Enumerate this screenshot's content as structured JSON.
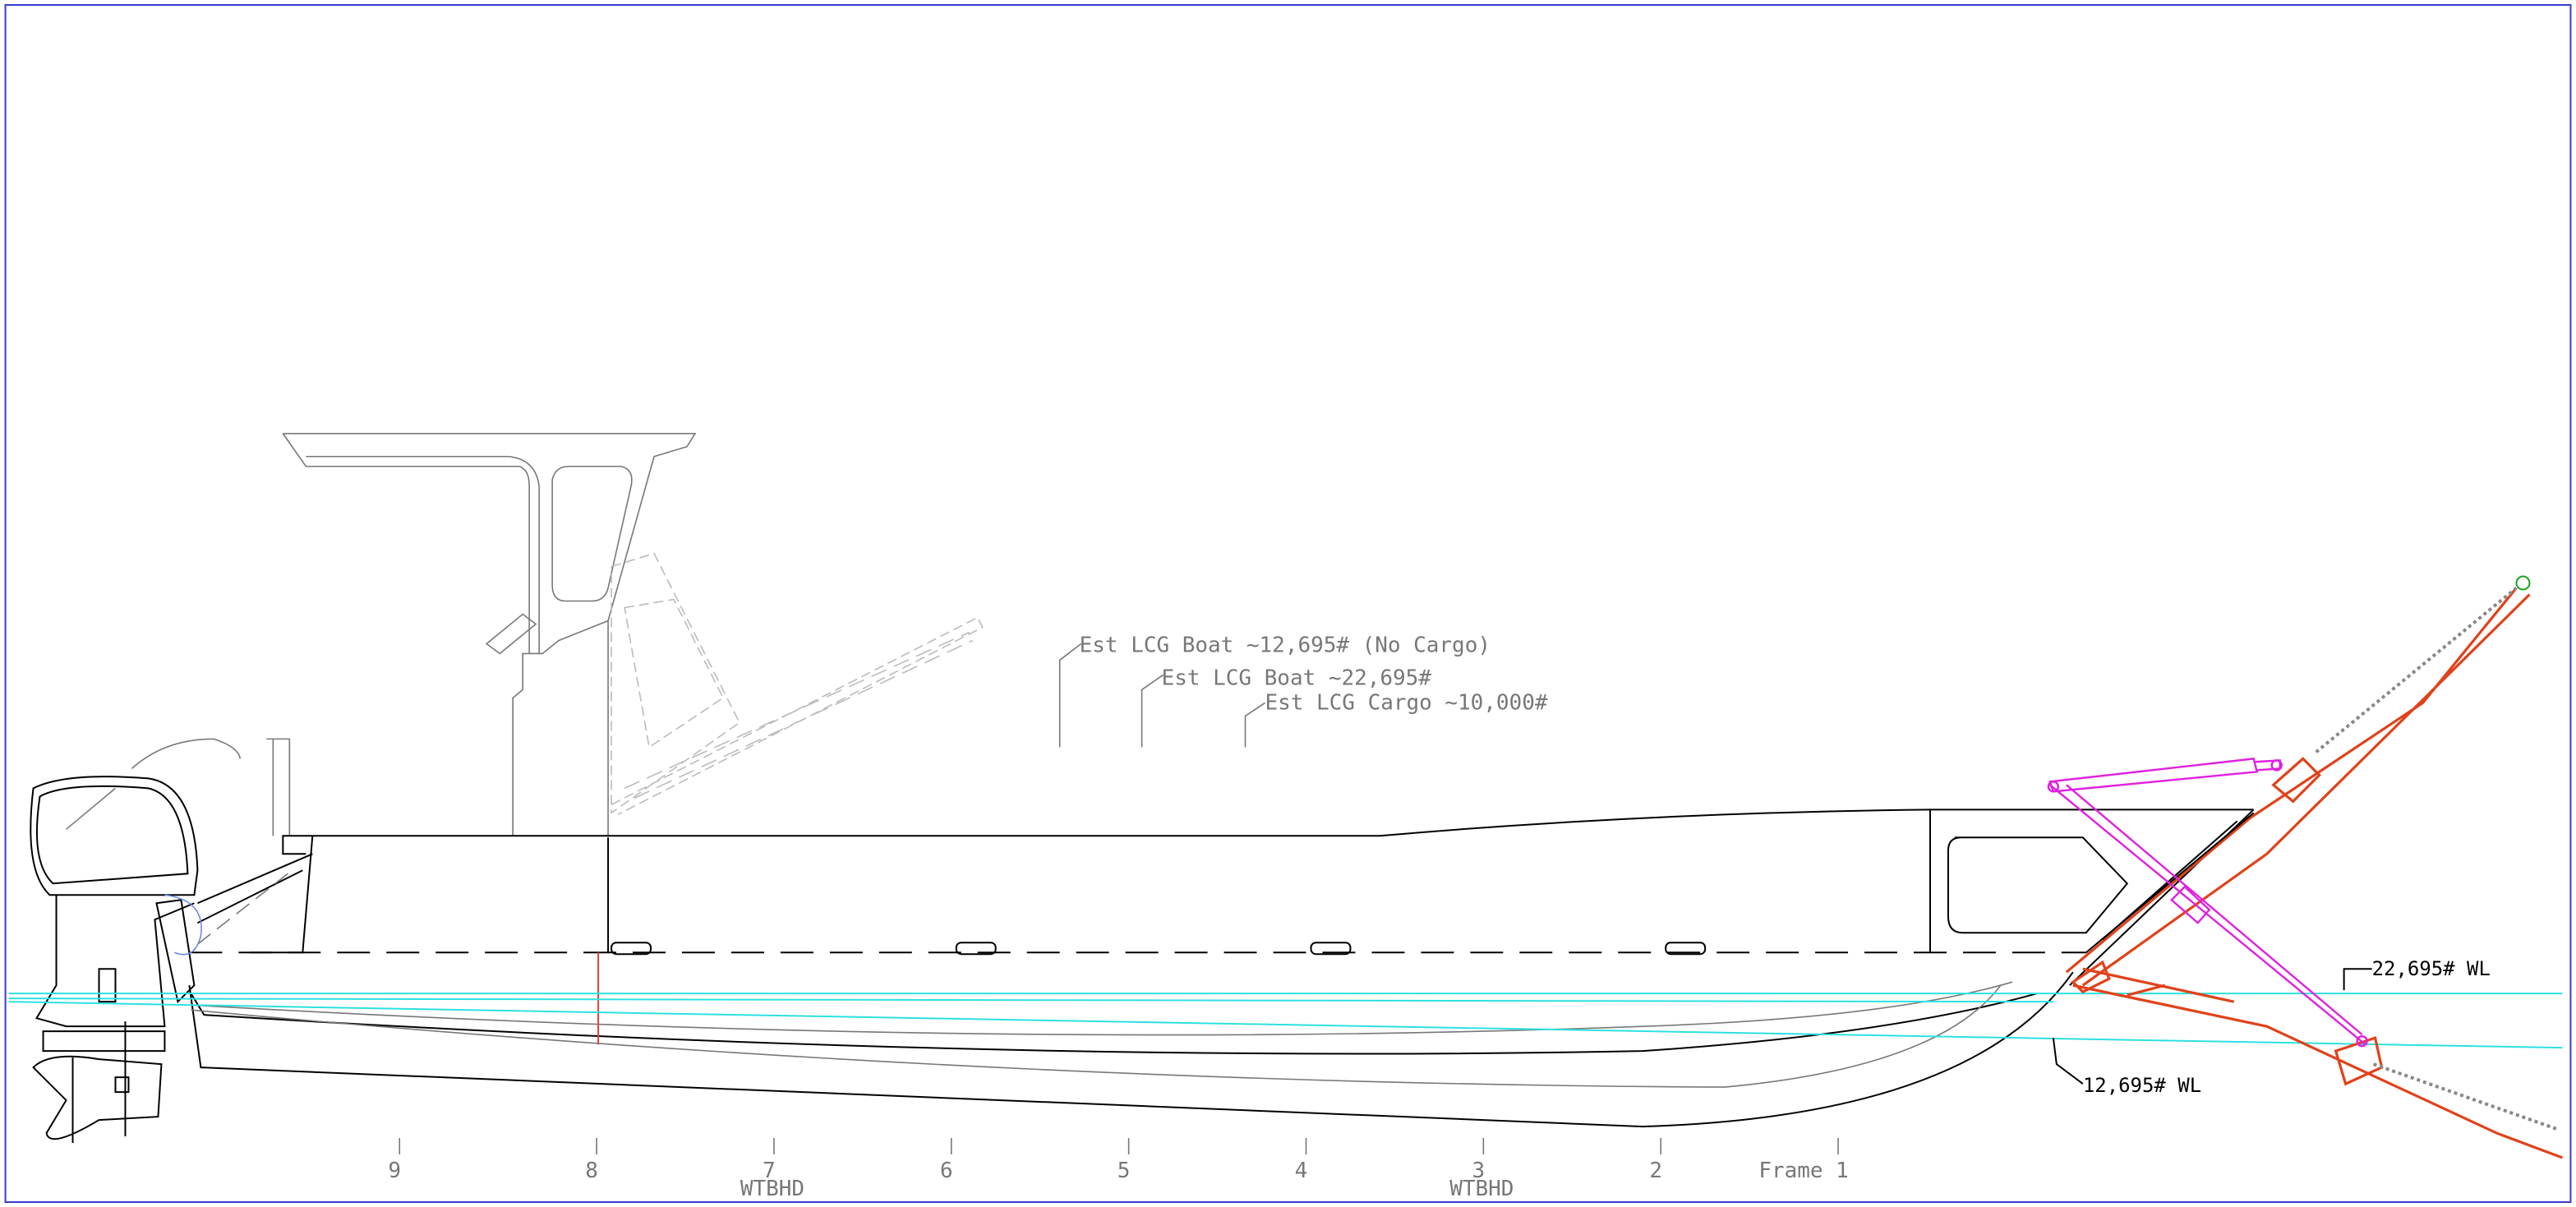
{
  "annotations": [
    "Est LCG Boat ~12,695# (No Cargo)",
    "Est LCG Boat ~22,695#",
    "Est LCG Cargo ~10,000#"
  ],
  "waterlines": [
    "22,695# WL",
    "12,695# WL"
  ],
  "frames": [
    "9",
    "8",
    "7",
    "6",
    "5",
    "4",
    "3",
    "2",
    "Frame 1"
  ],
  "bulkheads": [
    "WTBHD",
    "WTBHD"
  ]
}
